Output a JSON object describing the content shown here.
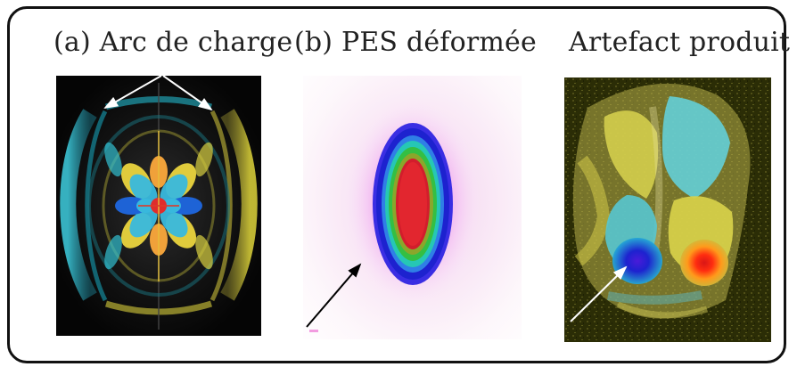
{
  "panels": {
    "a": {
      "caption": "(a) Arc de charge",
      "colors": {
        "background": "#050505",
        "cyan": "#29c6d8",
        "yellow": "#d7cf38",
        "blue": "#1d5bd8",
        "orange": "#f19b35",
        "red": "#df2c2c",
        "arrow": "#ffffff"
      }
    },
    "b": {
      "caption": "(b) PES déformée",
      "colors": {
        "background": "#ffffff",
        "pink": "#f0a6e9",
        "magenta": "#e35ce0",
        "blue": "#1730d8",
        "green": "#2bbf4a",
        "red": "#df1f2d",
        "arrow": "#000000"
      }
    },
    "c": {
      "caption": "Artefact produit",
      "colors": {
        "background": "#2b2d06",
        "yellow": "#b9b14a",
        "cyan": "#5ccbd5",
        "blue": "#2027d1",
        "red": "#ef2a16",
        "arrow": "#ffffff"
      }
    }
  }
}
